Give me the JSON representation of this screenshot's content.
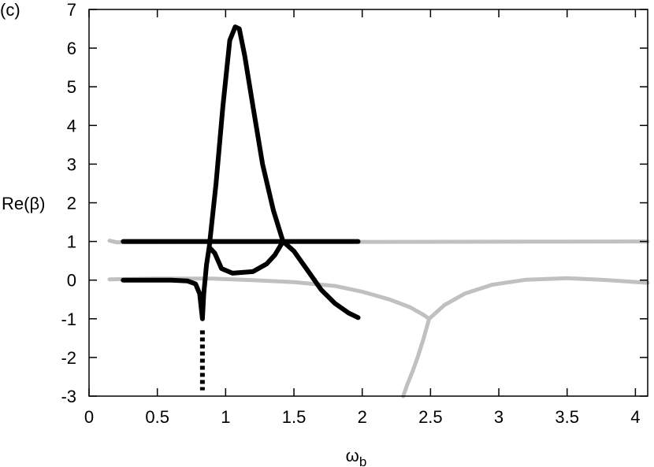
{
  "chart_data": {
    "type": "line",
    "annotation": "(c)",
    "y_label": "Re(β)",
    "x_label": {
      "main": "ω",
      "sub": "b"
    },
    "xlim": [
      0,
      4.09
    ],
    "ylim": [
      -3,
      7
    ],
    "xticks": [
      0,
      0.5,
      1,
      1.5,
      2,
      2.5,
      3,
      3.5,
      4
    ],
    "yticks": [
      -3,
      -2,
      -1,
      0,
      1,
      2,
      3,
      4,
      5,
      6,
      7
    ],
    "grid": false,
    "series": [
      {
        "color": "#c0c0c0",
        "style": "solid",
        "x": [
          0.15,
          0.2,
          4.09
        ],
        "values": [
          1.02,
          0.98,
          1
        ]
      },
      {
        "color": "#c0c0c0",
        "style": "solid",
        "x": [
          0.15,
          0.5,
          0.9,
          1.2,
          1.5,
          1.8,
          2.0,
          2.2,
          2.35,
          2.45,
          2.49
        ],
        "values": [
          0.02,
          0.04,
          0.04,
          0.0,
          -0.05,
          -0.15,
          -0.3,
          -0.5,
          -0.7,
          -0.9,
          -1.0
        ]
      },
      {
        "color": "#c0c0c0",
        "style": "solid",
        "x": [
          2.49,
          2.45,
          2.41,
          2.37,
          2.33,
          2.3
        ],
        "values": [
          -1.0,
          -1.5,
          -1.95,
          -2.35,
          -2.7,
          -3.0
        ]
      },
      {
        "color": "#c0c0c0",
        "style": "solid",
        "x": [
          2.49,
          2.6,
          2.75,
          2.95,
          3.2,
          3.5,
          3.8,
          4.09
        ],
        "values": [
          -1.0,
          -0.65,
          -0.35,
          -0.12,
          0.01,
          0.05,
          0.0,
          -0.07
        ]
      },
      {
        "color": "#000000",
        "style": "solid",
        "x": [
          0.25,
          1.97
        ],
        "values": [
          1,
          1
        ]
      },
      {
        "color": "#000000",
        "style": "solid",
        "x": [
          0.25,
          0.6,
          0.72,
          0.78,
          0.81,
          0.83,
          0.84,
          0.86,
          0.88,
          0.92,
          0.97,
          1.05,
          1.2,
          1.3,
          1.36,
          1.42,
          1.5,
          1.6,
          1.7,
          1.8,
          1.9,
          1.97
        ],
        "values": [
          0,
          0,
          -0.02,
          -0.1,
          -0.35,
          -1.0,
          -0.35,
          0.4,
          0.85,
          0.7,
          0.3,
          0.18,
          0.22,
          0.42,
          0.65,
          1.0,
          0.75,
          0.25,
          -0.25,
          -0.6,
          -0.85,
          -0.97
        ]
      },
      {
        "color": "#000000",
        "style": "solid",
        "x": [
          0.88,
          0.93,
          0.98,
          1.03,
          1.07,
          1.1,
          1.14,
          1.2,
          1.27,
          1.35,
          1.42
        ],
        "values": [
          0.85,
          2.5,
          4.5,
          6.2,
          6.55,
          6.5,
          5.8,
          4.5,
          3.0,
          1.8,
          1.0
        ]
      },
      {
        "color": "#000000",
        "style": "dotted",
        "x": [
          0.83,
          0.83
        ],
        "values": [
          -1.3,
          -2.85
        ]
      }
    ]
  }
}
